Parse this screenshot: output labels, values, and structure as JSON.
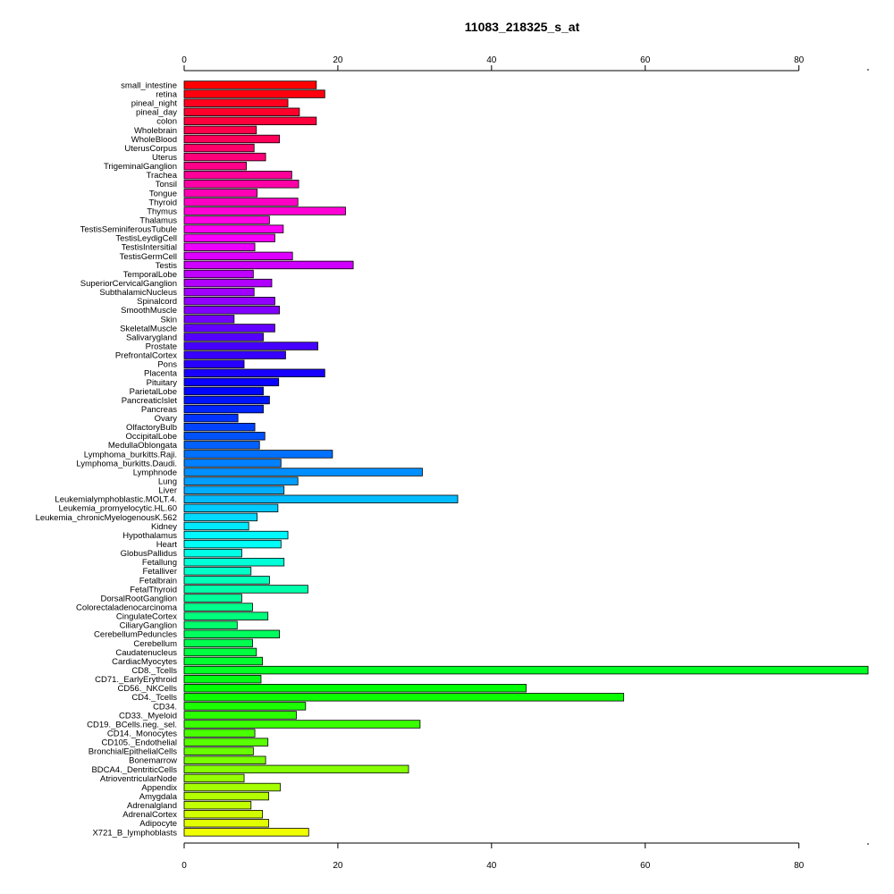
{
  "chart_data": {
    "type": "bar",
    "orientation": "horizontal",
    "title": "11083_218325_s_at",
    "xlabel": "",
    "ylabel": "",
    "xlim": [
      0,
      89
    ],
    "xticks": [
      0,
      20,
      40,
      60,
      80
    ],
    "xtick_labels": [
      "0",
      "20",
      "40",
      "60",
      "80"
    ],
    "axes": [
      "top",
      "bottom"
    ],
    "grid": false,
    "legend": "none",
    "color_scheme": "rainbow (red to yellow-green to violet)",
    "categories": [
      "small_intestine",
      "retina",
      "pineal_night",
      "pineal_day",
      "colon",
      "Wholebrain",
      "WholeBlood",
      "UterusCorpus",
      "Uterus",
      "TrigeminalGanglion",
      "Trachea",
      "Tonsil",
      "Tongue",
      "Thyroid",
      "Thymus",
      "Thalamus",
      "TestisSeminiferousTubule",
      "TestisLeydigCell",
      "TestisIntersitial",
      "TestisGermCell",
      "Testis",
      "TemporalLobe",
      "SuperiorCervicalGanglion",
      "SubthalamicNucleus",
      "Spinalcord",
      "SmoothMuscle",
      "Skin",
      "SkeletalMuscle",
      "Salivarygland",
      "Prostate",
      "PrefrontalCortex",
      "Pons",
      "Placenta",
      "Pituitary",
      "ParietalLobe",
      "PancreaticIslet",
      "Pancreas",
      "Ovary",
      "OlfactoryBulb",
      "OccipitalLobe",
      "MedullaOblongata",
      "Lymphoma_burkitts.Raji.",
      "Lymphoma_burkitts.Daudi.",
      "Lymphnode",
      "Lung",
      "Liver",
      "Leukemialymphoblastic.MOLT.4.",
      "Leukemia_promyelocytic.HL.60",
      "Leukemia_chronicMyelogenousK.562",
      "Kidney",
      "Hypothalamus",
      "Heart",
      "GlobusPallidus",
      "Fetallung",
      "Fetalliver",
      "Fetalbrain",
      "FetalThyroid",
      "DorsalRootGanglion",
      "Colorectaladenocarcinoma",
      "CingulateCortex",
      "CiliaryGanglion",
      "CerebellumPeduncles",
      "Cerebellum",
      "Caudatenucleus",
      "CardiacMyocytes",
      "CD8._Tcells",
      "CD71._EarlyErythroid",
      "CD56._NKCells",
      "CD4._Tcells",
      "CD34.",
      "CD33._Myeloid",
      "CD19._BCells.neg._sel.",
      "CD14._Monocytes",
      "CD105._Endothelial",
      "BronchialEpithelialCells",
      "Bonemarrow",
      "BDCA4._DentriticCells",
      "AtrioventricularNode",
      "Appendix",
      "Amygdala",
      "Adrenalgland",
      "AdrenalCortex",
      "Adipocyte",
      "X721_B_lymphoblasts"
    ],
    "values": [
      17.2,
      18.3,
      13.5,
      15.0,
      17.2,
      9.4,
      12.4,
      9.1,
      10.6,
      8.1,
      14.0,
      14.9,
      9.5,
      14.8,
      21.0,
      11.1,
      12.9,
      11.8,
      9.2,
      14.1,
      22.0,
      9.0,
      11.4,
      9.1,
      11.8,
      12.4,
      6.5,
      11.8,
      10.3,
      17.4,
      13.2,
      7.8,
      18.3,
      12.3,
      10.3,
      11.1,
      10.3,
      7.0,
      9.2,
      10.5,
      9.8,
      19.3,
      12.6,
      31.0,
      14.8,
      13.0,
      35.6,
      12.2,
      9.5,
      8.4,
      13.5,
      12.6,
      7.5,
      13.0,
      8.7,
      11.1,
      16.1,
      7.5,
      8.9,
      10.9,
      6.9,
      12.4,
      8.9,
      9.4,
      10.2,
      89.0,
      10.0,
      44.5,
      57.2,
      15.8,
      14.6,
      30.7,
      9.2,
      10.9,
      9.0,
      10.6,
      29.2,
      7.8,
      12.5,
      11.0,
      8.7,
      10.2,
      11.0,
      16.2
    ]
  }
}
